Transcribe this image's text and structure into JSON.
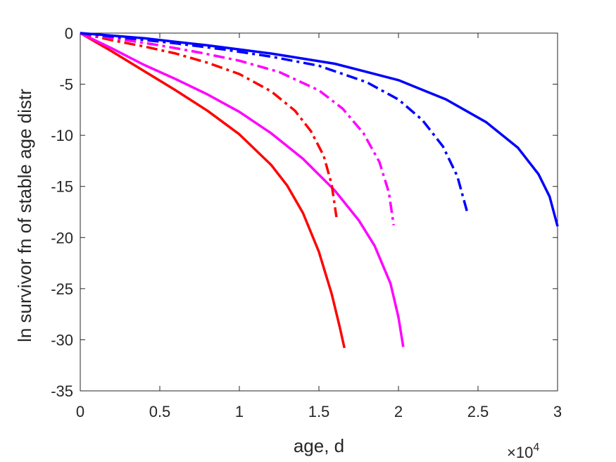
{
  "chart_data": {
    "type": "line",
    "title": "",
    "xlabel": "age, d",
    "ylabel": "ln survivor fn of stable age distr",
    "x_exponent_label": {
      "base": "×10",
      "exponent": "4"
    },
    "xlim": [
      0,
      30000
    ],
    "ylim": [
      -35,
      0
    ],
    "x_ticks": [
      0,
      5000,
      10000,
      15000,
      20000,
      25000,
      30000
    ],
    "x_tick_labels": [
      "0",
      "0.5",
      "1",
      "1.5",
      "2",
      "2.5",
      "3"
    ],
    "y_ticks": [
      0,
      -5,
      -10,
      -15,
      -20,
      -25,
      -30,
      -35
    ],
    "y_tick_labels": [
      "0",
      "-5",
      "-10",
      "-15",
      "-20",
      "-25",
      "-30",
      "-35"
    ],
    "grid": false,
    "series": [
      {
        "color": "#ff0000",
        "style": "solid",
        "x": [
          0,
          2000,
          4000,
          6000,
          8000,
          10000,
          12000,
          13000,
          14000,
          15000,
          15800,
          16300,
          16600
        ],
        "y": [
          0,
          -1.8,
          -3.7,
          -5.6,
          -7.6,
          -9.9,
          -12.9,
          -14.9,
          -17.6,
          -21.4,
          -25.5,
          -28.7,
          -30.8
        ]
      },
      {
        "color": "#ff00ff",
        "style": "solid",
        "x": [
          0,
          2000,
          4000,
          6000,
          8000,
          10000,
          12000,
          14000,
          16000,
          17500,
          18500,
          19500,
          20000,
          20300
        ],
        "y": [
          0,
          -1.5,
          -3.1,
          -4.5,
          -6.0,
          -7.7,
          -9.8,
          -12.3,
          -15.4,
          -18.3,
          -20.8,
          -24.5,
          -27.8,
          -30.7
        ]
      },
      {
        "color": "#ff0000",
        "style": "dashdot",
        "x": [
          0,
          2000,
          4000,
          6000,
          8000,
          10000,
          12000,
          13500,
          14500,
          15300,
          15800,
          16100
        ],
        "y": [
          0,
          -0.7,
          -1.3,
          -2.0,
          -2.9,
          -4.0,
          -5.7,
          -7.6,
          -9.6,
          -12.0,
          -14.8,
          -18.0
        ]
      },
      {
        "color": "#ff00ff",
        "style": "dashdot",
        "x": [
          0,
          2500,
          5000,
          7500,
          10000,
          12500,
          15000,
          16500,
          17800,
          18800,
          19400,
          19700
        ],
        "y": [
          0,
          -0.6,
          -1.2,
          -1.9,
          -2.7,
          -3.8,
          -5.6,
          -7.4,
          -9.8,
          -12.6,
          -15.6,
          -18.8
        ]
      },
      {
        "color": "#0000ff",
        "style": "dashdot",
        "x": [
          0,
          3000,
          6000,
          9000,
          12000,
          15000,
          18000,
          20000,
          21500,
          22800,
          23700,
          24300
        ],
        "y": [
          0,
          -0.5,
          -1.0,
          -1.6,
          -2.3,
          -3.2,
          -4.8,
          -6.5,
          -8.5,
          -11.1,
          -14.0,
          -17.4
        ]
      },
      {
        "color": "#0000ff",
        "style": "solid",
        "x": [
          0,
          4000,
          8000,
          12000,
          16000,
          20000,
          23000,
          25500,
          27500,
          28800,
          29500,
          30000
        ],
        "y": [
          0,
          -0.5,
          -1.2,
          -2.0,
          -3.0,
          -4.6,
          -6.5,
          -8.7,
          -11.2,
          -13.8,
          -16.0,
          -18.9
        ]
      }
    ]
  }
}
